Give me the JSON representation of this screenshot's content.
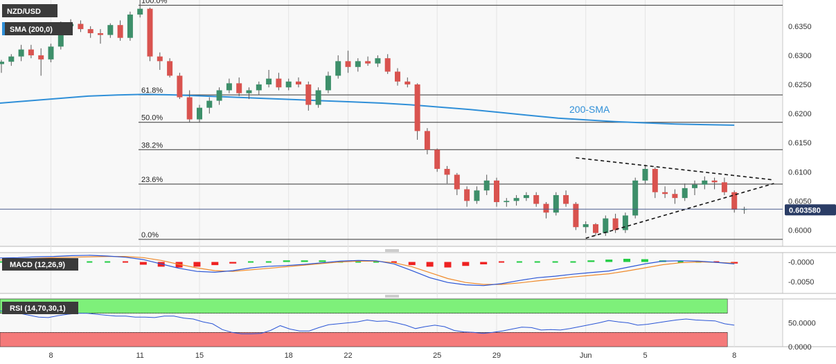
{
  "chart_data": {
    "type": "candlestick",
    "symbol": "NZD/USD",
    "indicator_label": "SMA (200,0)",
    "sma_annotation": "200-SMA",
    "current_price_label": "0.603580",
    "current_price": 0.60358,
    "price_axis": {
      "ylim": [
        0.5972,
        0.6395
      ],
      "ticks": [
        "0.6350",
        "0.6300",
        "0.6250",
        "0.6200",
        "0.6150",
        "0.6100",
        "0.6050",
        "0.6000"
      ]
    },
    "x_ticks": [
      {
        "label": "8",
        "idx": 5
      },
      {
        "label": "11",
        "idx": 14
      },
      {
        "label": "15",
        "idx": 20
      },
      {
        "label": "18",
        "idx": 29
      },
      {
        "label": "22",
        "idx": 35
      },
      {
        "label": "25",
        "idx": 44
      },
      {
        "label": "29",
        "idx": 50
      },
      {
        "label": "Jun",
        "idx": 59
      },
      {
        "label": "5",
        "idx": 65
      },
      {
        "label": "8",
        "idx": 74
      }
    ],
    "fib_levels": [
      {
        "label": "100.0%",
        "price": 0.6386
      },
      {
        "label": "61.8%",
        "price": 0.6232
      },
      {
        "label": "50.0%",
        "price": 0.6185
      },
      {
        "label": "38.2%",
        "price": 0.6138
      },
      {
        "label": "23.6%",
        "price": 0.6079
      },
      {
        "label": "0.0%",
        "price": 0.5984
      }
    ],
    "candles_ohlc": [
      [
        0.6285,
        0.6292,
        0.627,
        0.6289
      ],
      [
        0.6289,
        0.6302,
        0.6282,
        0.6298
      ],
      [
        0.6298,
        0.6318,
        0.629,
        0.631
      ],
      [
        0.631,
        0.6318,
        0.6295,
        0.63
      ],
      [
        0.63,
        0.6312,
        0.6265,
        0.6293
      ],
      [
        0.6293,
        0.632,
        0.6288,
        0.6315
      ],
      [
        0.6315,
        0.6358,
        0.631,
        0.635
      ],
      [
        0.635,
        0.6362,
        0.6338,
        0.6354
      ],
      [
        0.6354,
        0.636,
        0.634,
        0.6345
      ],
      [
        0.6345,
        0.635,
        0.633,
        0.6338
      ],
      [
        0.6338,
        0.6345,
        0.632,
        0.6335
      ],
      [
        0.6335,
        0.6355,
        0.633,
        0.6352
      ],
      [
        0.6352,
        0.636,
        0.6325,
        0.633
      ],
      [
        0.633,
        0.6375,
        0.6325,
        0.637
      ],
      [
        0.637,
        0.6395,
        0.6365,
        0.638
      ],
      [
        0.638,
        0.6382,
        0.629,
        0.6298
      ],
      [
        0.6298,
        0.6305,
        0.6275,
        0.629
      ],
      [
        0.629,
        0.6295,
        0.6262,
        0.6265
      ],
      [
        0.6265,
        0.627,
        0.6225,
        0.6228
      ],
      [
        0.6228,
        0.624,
        0.6185,
        0.619
      ],
      [
        0.619,
        0.6215,
        0.6185,
        0.621
      ],
      [
        0.621,
        0.6228,
        0.62,
        0.6222
      ],
      [
        0.6222,
        0.6245,
        0.6215,
        0.624
      ],
      [
        0.624,
        0.626,
        0.6235,
        0.6252
      ],
      [
        0.6252,
        0.6262,
        0.623,
        0.6235
      ],
      [
        0.6235,
        0.6245,
        0.6225,
        0.624
      ],
      [
        0.624,
        0.6255,
        0.6232,
        0.625
      ],
      [
        0.625,
        0.6275,
        0.6245,
        0.626
      ],
      [
        0.626,
        0.627,
        0.624,
        0.6245
      ],
      [
        0.6245,
        0.626,
        0.624,
        0.6255
      ],
      [
        0.6255,
        0.6262,
        0.6245,
        0.625
      ],
      [
        0.625,
        0.6255,
        0.6205,
        0.6215
      ],
      [
        0.6215,
        0.6245,
        0.621,
        0.624
      ],
      [
        0.624,
        0.6272,
        0.6235,
        0.6265
      ],
      [
        0.6265,
        0.63,
        0.626,
        0.629
      ],
      [
        0.629,
        0.6308,
        0.627,
        0.628
      ],
      [
        0.628,
        0.6295,
        0.6272,
        0.629
      ],
      [
        0.629,
        0.6298,
        0.6282,
        0.6286
      ],
      [
        0.6286,
        0.63,
        0.628,
        0.6295
      ],
      [
        0.6295,
        0.6302,
        0.6268,
        0.6272
      ],
      [
        0.6272,
        0.6278,
        0.6248,
        0.6255
      ],
      [
        0.6255,
        0.6262,
        0.6245,
        0.625
      ],
      [
        0.625,
        0.6252,
        0.6155,
        0.617
      ],
      [
        0.617,
        0.6175,
        0.613,
        0.6138
      ],
      [
        0.6138,
        0.614,
        0.61,
        0.6105
      ],
      [
        0.6105,
        0.611,
        0.608,
        0.6095
      ],
      [
        0.6095,
        0.6098,
        0.606,
        0.607
      ],
      [
        0.607,
        0.6075,
        0.604,
        0.605
      ],
      [
        0.605,
        0.6075,
        0.6045,
        0.6068
      ],
      [
        0.6068,
        0.6095,
        0.606,
        0.6085
      ],
      [
        0.6085,
        0.609,
        0.604,
        0.6048
      ],
      [
        0.6048,
        0.6055,
        0.604,
        0.605
      ],
      [
        0.605,
        0.606,
        0.6042,
        0.6055
      ],
      [
        0.6055,
        0.6065,
        0.605,
        0.606
      ],
      [
        0.606,
        0.6065,
        0.604,
        0.6045
      ],
      [
        0.6045,
        0.6048,
        0.602,
        0.603
      ],
      [
        0.603,
        0.6065,
        0.6025,
        0.606
      ],
      [
        0.606,
        0.6068,
        0.604,
        0.6045
      ],
      [
        0.6045,
        0.6048,
        0.6,
        0.6005
      ],
      [
        0.6005,
        0.6015,
        0.5995,
        0.601
      ],
      [
        0.601,
        0.6012,
        0.599,
        0.5995
      ],
      [
        0.5995,
        0.6025,
        0.599,
        0.602
      ],
      [
        0.602,
        0.6028,
        0.5995,
        0.6
      ],
      [
        0.6,
        0.603,
        0.5995,
        0.6025
      ],
      [
        0.6025,
        0.609,
        0.602,
        0.6085
      ],
      [
        0.6085,
        0.6112,
        0.608,
        0.6105
      ],
      [
        0.6105,
        0.6108,
        0.6055,
        0.6065
      ],
      [
        0.6065,
        0.6075,
        0.6055,
        0.6062
      ],
      [
        0.6062,
        0.607,
        0.6045,
        0.6055
      ],
      [
        0.6055,
        0.608,
        0.605,
        0.6072
      ],
      [
        0.6072,
        0.6085,
        0.606,
        0.6078
      ],
      [
        0.6078,
        0.6092,
        0.607,
        0.6085
      ],
      [
        0.6085,
        0.609,
        0.607,
        0.6082
      ],
      [
        0.6082,
        0.609,
        0.606,
        0.6065
      ],
      [
        0.6065,
        0.6068,
        0.603,
        0.6035
      ],
      [
        0.6035,
        0.604,
        0.6028,
        0.6036
      ]
    ],
    "sma200": [
      0.6218,
      0.6222,
      0.6226,
      0.623,
      0.6232,
      0.6233,
      0.6232,
      0.623,
      0.6228,
      0.6226,
      0.6224,
      0.6222,
      0.622,
      0.6218,
      0.6215,
      0.6211,
      0.6207,
      0.6202,
      0.6197,
      0.6192,
      0.6189,
      0.6186,
      0.6184,
      0.6182,
      0.6181,
      0.618
    ],
    "trendlines": [
      {
        "name": "upper",
        "from": [
          58,
          0.6124
        ],
        "to": [
          78,
          0.6086
        ]
      },
      {
        "name": "lower",
        "from": [
          59,
          0.5986
        ],
        "to": [
          78,
          0.608
        ]
      }
    ],
    "macd": {
      "label": "MACD (12,26,9)",
      "ticks": [
        "-0.0000",
        "-0.0050"
      ],
      "ylim": [
        -0.0078,
        0.0022
      ],
      "macd_line": [
        0.001,
        0.0011,
        0.0013,
        0.0014,
        0.0016,
        0.0017,
        0.0015,
        0.0012,
        0.0006,
        -0.0005,
        -0.0016,
        -0.0024,
        -0.0026,
        -0.0022,
        -0.0015,
        -0.0011,
        -0.0009,
        -0.0006,
        -0.0002,
        0.0002,
        0.0004,
        0.0003,
        -0.0005,
        -0.0022,
        -0.004,
        -0.0052,
        -0.0058,
        -0.006,
        -0.0055,
        -0.0047,
        -0.004,
        -0.0036,
        -0.0031,
        -0.0027,
        -0.0023,
        -0.0014,
        -0.0005,
        0.0002,
        0.0003,
        0.0002,
        -0.0001,
        -0.0005
      ],
      "signal_line": [
        0.0005,
        0.0007,
        0.0009,
        0.0011,
        0.0012,
        0.0013,
        0.0014,
        0.0014,
        0.0011,
        0.0004,
        -0.0006,
        -0.0015,
        -0.0022,
        -0.0024,
        -0.002,
        -0.0016,
        -0.0012,
        -0.0008,
        -0.0004,
        0.0,
        0.0002,
        0.0002,
        -0.0002,
        -0.0012,
        -0.0027,
        -0.0042,
        -0.0052,
        -0.0057,
        -0.0057,
        -0.0053,
        -0.0048,
        -0.0043,
        -0.0038,
        -0.0034,
        -0.003,
        -0.0023,
        -0.0015,
        -0.0007,
        -0.0002,
        0.0,
        -0.0001,
        -0.0003
      ],
      "histogram": [
        0.0003,
        0.0004,
        0.0004,
        0.0003,
        0.0003,
        0.0002,
        0.0,
        -0.0003,
        -0.0007,
        -0.0012,
        -0.0014,
        -0.0012,
        -0.0008,
        -0.0004,
        0.0,
        0.0003,
        0.0004,
        0.0004,
        0.0004,
        0.0003,
        0.0002,
        0.0001,
        -0.0003,
        -0.0008,
        -0.0012,
        -0.0014,
        -0.001,
        -0.0006,
        -0.0002,
        0.0002,
        0.0003,
        0.0003,
        0.0003,
        0.0004,
        0.0006,
        0.0008,
        0.0007,
        0.0004,
        0.0002,
        0.0,
        -0.0002,
        -0.0004
      ]
    },
    "rsi": {
      "label": "RSI (14,70,30,1)",
      "ticks": [
        "50.0000",
        "0.0000"
      ],
      "ylim": [
        0,
        100
      ],
      "overbought": 70,
      "oversold": 30,
      "values": [
        75,
        72,
        70,
        66,
        62,
        61,
        65,
        68,
        70,
        70,
        68,
        66,
        64,
        64,
        62,
        62,
        61,
        64,
        64,
        60,
        58,
        52,
        48,
        36,
        30,
        27,
        27,
        28,
        34,
        44,
        37,
        33,
        33,
        40,
        46,
        48,
        50,
        52,
        56,
        53,
        54,
        50,
        45,
        38,
        42,
        45,
        42,
        34,
        31,
        30,
        28,
        30,
        33,
        37,
        41,
        40,
        35,
        36,
        35,
        38,
        42,
        46,
        50,
        55,
        52,
        50,
        45,
        47,
        50,
        53,
        56,
        58,
        56,
        55,
        54,
        48,
        45
      ]
    }
  }
}
